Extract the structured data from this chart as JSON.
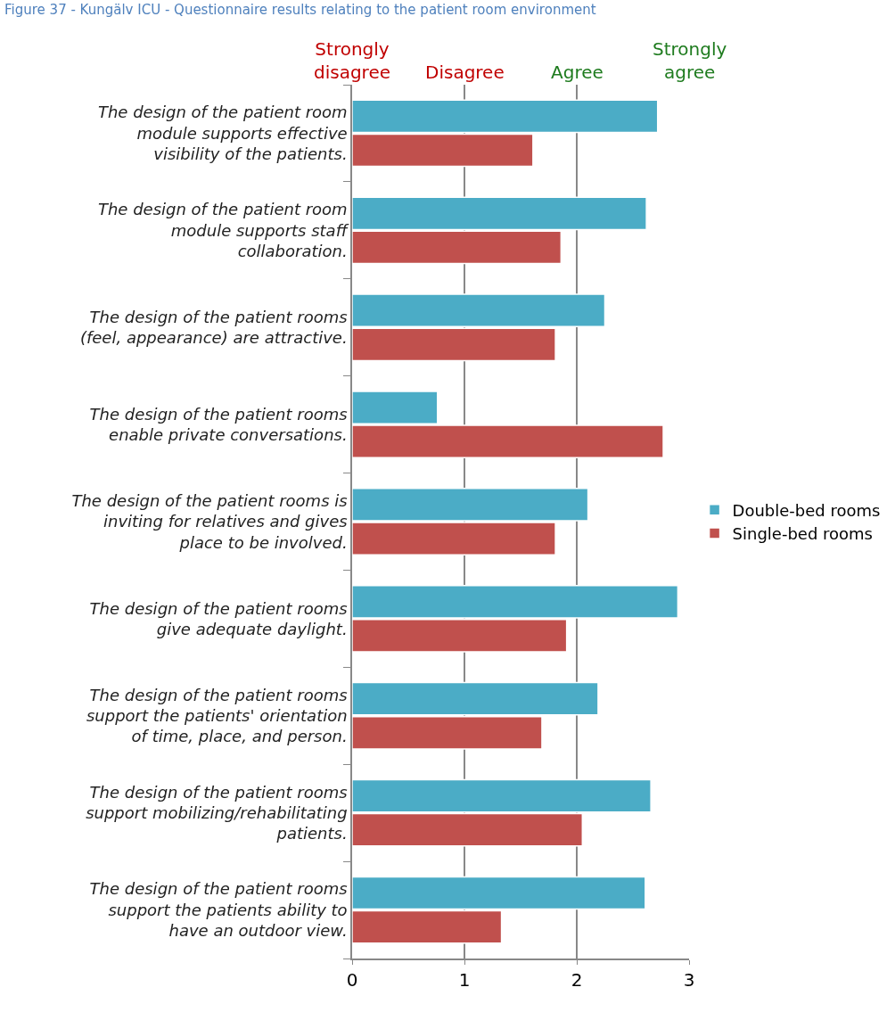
{
  "chart_data": {
    "type": "bar",
    "orientation": "horizontal",
    "title": "Figure 37 - Kungälv ICU - Questionnaire results relating to the patient room environment",
    "categories": [
      "The design of the patient room module supports effective visibility of the patients.",
      "The design of the patient room module supports staff collaboration.",
      "The design of the patient rooms (feel, appearance) are attractive.",
      "The design of the patient rooms enable private conversations.",
      "The design of the patient rooms is inviting for relatives and gives place to be involved.",
      "The design of the patient rooms give adequate daylight.",
      "The design of the patient rooms support the patients' orientation of time, place, and person.",
      "The design of the patient rooms support mobilizing/rehabilitating patients.",
      "The design of the patient rooms support the patients ability to have an outdoor view."
    ],
    "series": [
      {
        "name": "Double-bed rooms",
        "color": "#4bacc6",
        "values": [
          2.72,
          2.62,
          2.25,
          0.76,
          2.1,
          2.9,
          2.19,
          2.66,
          2.61
        ]
      },
      {
        "name": "Single-bed rooms",
        "color": "#c0504d",
        "values": [
          1.61,
          1.86,
          1.81,
          2.77,
          1.81,
          1.91,
          1.69,
          2.05,
          1.33
        ]
      }
    ],
    "xlim": [
      0,
      3
    ],
    "xticks": [
      0,
      1,
      2,
      3
    ],
    "annotations": [
      "Strongly disagree",
      "Disagree",
      "Agree",
      "Strongly agree"
    ],
    "grid": "x",
    "legend": "right"
  }
}
